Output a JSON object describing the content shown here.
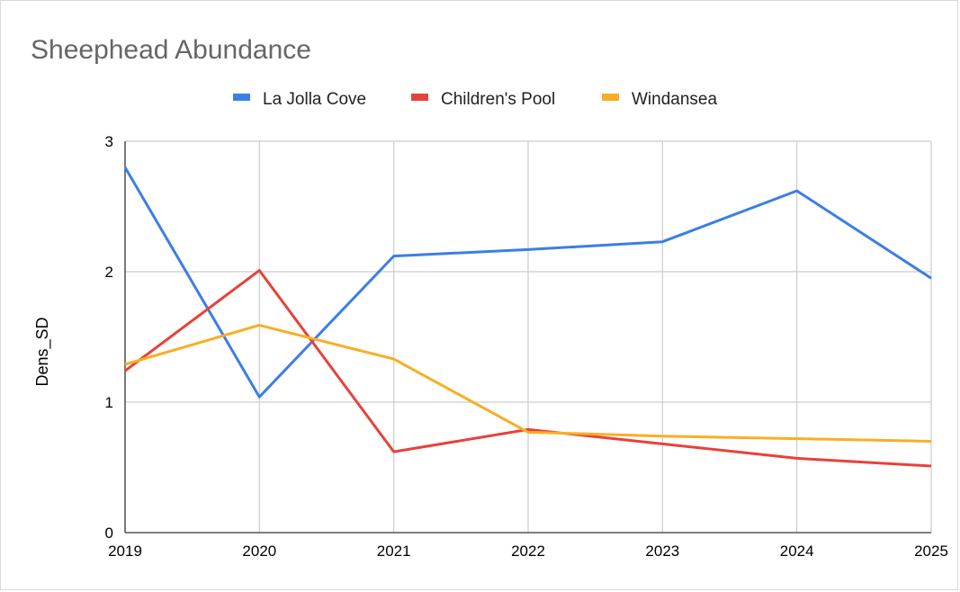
{
  "chart_data": {
    "type": "line",
    "title": "Sheephead Abundance",
    "xlabel": "",
    "ylabel": "Dens_SD",
    "x": [
      2019,
      2020,
      2021,
      2022,
      2023,
      2024,
      2025
    ],
    "x_tick_labels": [
      "2019",
      "2020",
      "2021",
      "2022",
      "2023",
      "2024",
      "2025"
    ],
    "y_ticks": [
      0,
      1,
      2,
      3
    ],
    "y_tick_labels": [
      "0",
      "1",
      "2",
      "3"
    ],
    "ylim": [
      0,
      3
    ],
    "grid": true,
    "legend_position": "top",
    "series": [
      {
        "name": "La Jolla Cove",
        "color": "#3b7ee6",
        "values": [
          2.8,
          1.04,
          2.12,
          2.17,
          2.23,
          2.62,
          1.95
        ]
      },
      {
        "name": "Children's Pool",
        "color": "#e8413a",
        "values": [
          1.24,
          2.01,
          0.62,
          0.79,
          0.68,
          0.57,
          0.51
        ]
      },
      {
        "name": "Windansea",
        "color": "#f9ae24",
        "values": [
          1.29,
          1.59,
          1.33,
          0.77,
          0.74,
          0.72,
          0.7
        ]
      }
    ]
  }
}
